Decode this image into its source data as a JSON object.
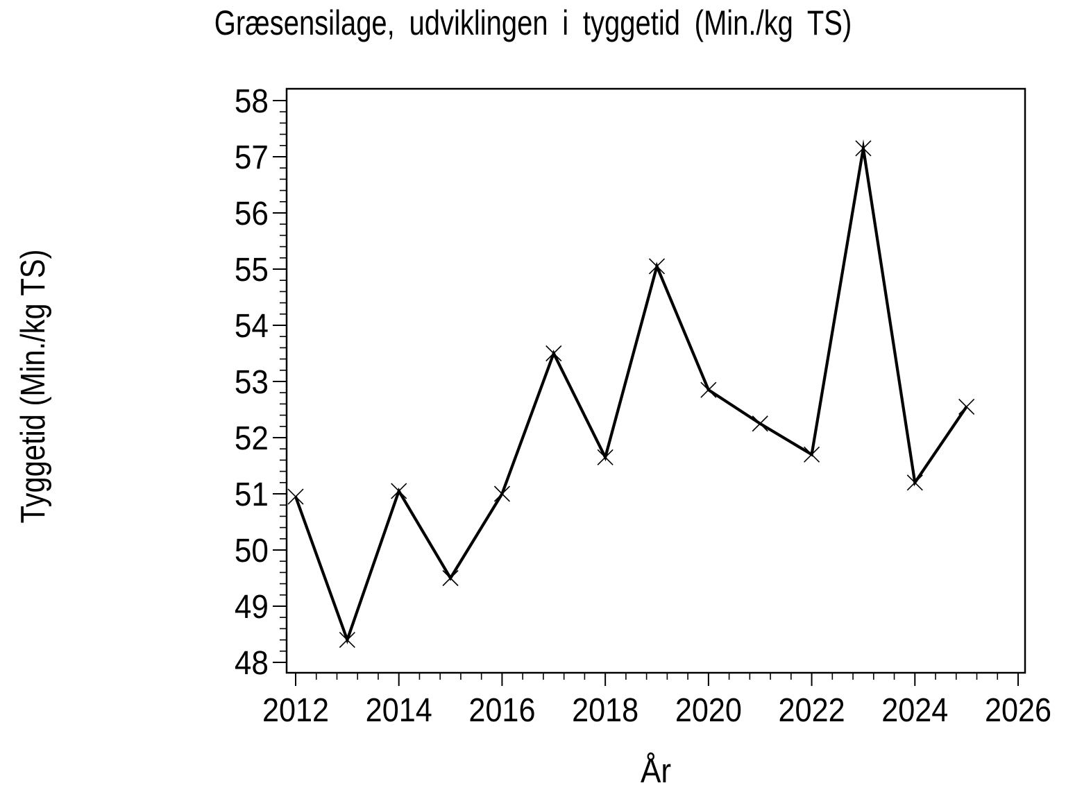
{
  "page": {
    "background": "#ffffff",
    "foreground": "#000000"
  },
  "chart_data": {
    "type": "line",
    "title": "Græsensilage,  udviklingen  i  tyggetid  (Min./kg  TS)",
    "xlabel": "År",
    "ylabel": "Tyggetid  (Min./kg  TS)",
    "grid": false,
    "legend": "none",
    "marker": "x",
    "series": [
      {
        "name": "Tyggetid (Min./kg TS)",
        "x": [
          2012,
          2013,
          2014,
          2015,
          2016,
          2017,
          2018,
          2019,
          2020,
          2021,
          2022,
          2023,
          2024,
          2025
        ],
        "values": [
          50.95,
          48.4,
          51.05,
          49.5,
          51.0,
          53.5,
          51.65,
          55.05,
          52.85,
          52.25,
          51.7,
          57.15,
          51.2,
          52.55
        ],
        "color": "#000000",
        "line_width": 4.2
      }
    ],
    "x_axis": {
      "label": "År",
      "range": [
        2011.82,
        2026.13
      ],
      "major_ticks": [
        2012,
        2014,
        2016,
        2018,
        2020,
        2022,
        2024,
        2026
      ],
      "minor_ticks_per_interval": 4
    },
    "y_axis": {
      "label": "Tyggetid (Min./kg TS)",
      "range": [
        47.81,
        58.19
      ],
      "major_ticks": [
        48,
        49,
        50,
        51,
        52,
        53,
        54,
        55,
        56,
        57,
        58
      ],
      "minor_ticks_per_interval": 4
    },
    "colors": {
      "line": "#000000",
      "axis": "#000000",
      "background": "#ffffff"
    }
  }
}
